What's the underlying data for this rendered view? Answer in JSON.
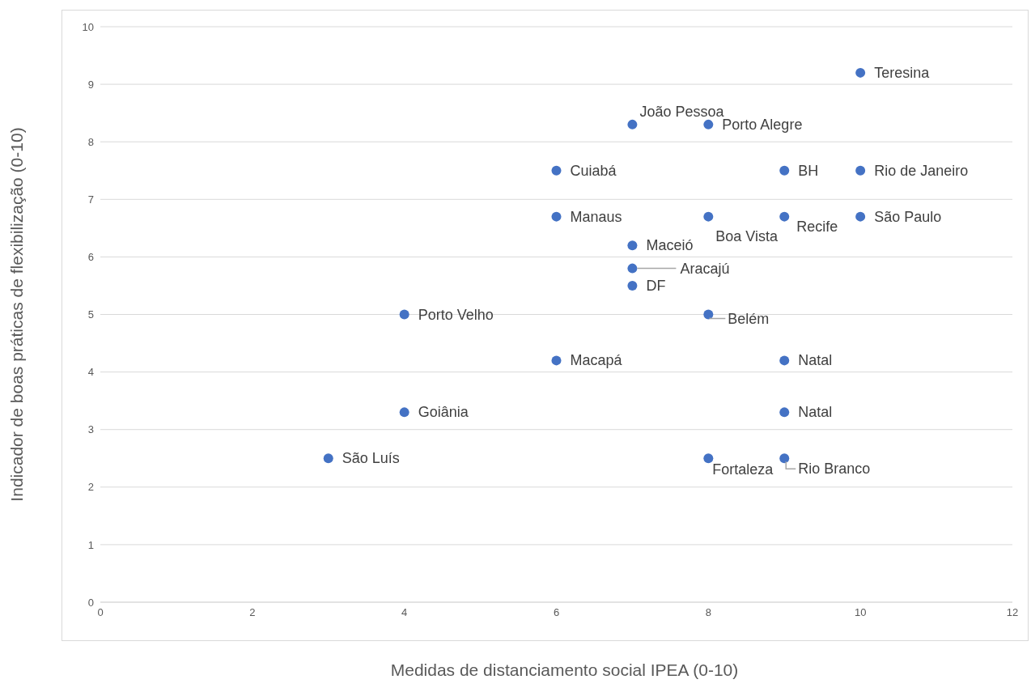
{
  "chart_data": {
    "type": "scatter",
    "xlabel": "Medidas de distanciamento social IPEA (0-10)",
    "ylabel": "Indicador de boas práticas de flexibilização (0-10)",
    "x": [
      10,
      7,
      8,
      6,
      9,
      10,
      6,
      8,
      9,
      10,
      7,
      7,
      7,
      4,
      8,
      6,
      9,
      4,
      9,
      3,
      8,
      9
    ],
    "series": [
      {
        "color": "#4472c4",
        "values": [
          9.2,
          8.3,
          8.3,
          7.5,
          7.5,
          7.5,
          6.7,
          6.7,
          6.7,
          6.7,
          6.2,
          5.8,
          5.5,
          5,
          5,
          4.2,
          4.2,
          3.3,
          3.3,
          2.5,
          2.5,
          2.5
        ]
      }
    ],
    "annotations": [
      {
        "text": "Teresina",
        "x": 10,
        "y": 9.2
      },
      {
        "text": "João Pessoa",
        "x": 7,
        "y": 8.3
      },
      {
        "text": "Porto Alegre",
        "x": 8,
        "y": 8.3
      },
      {
        "text": "Cuiabá",
        "x": 6,
        "y": 7.5
      },
      {
        "text": "BH",
        "x": 9,
        "y": 7.5
      },
      {
        "text": "Rio de Janeiro",
        "x": 10,
        "y": 7.5
      },
      {
        "text": "Manaus",
        "x": 6,
        "y": 6.7
      },
      {
        "text": "Boa Vista",
        "x": 8,
        "y": 6.7
      },
      {
        "text": "Recife",
        "x": 9,
        "y": 6.7
      },
      {
        "text": "São Paulo",
        "x": 10,
        "y": 6.7
      },
      {
        "text": "Maceió",
        "x": 7,
        "y": 6.2
      },
      {
        "text": "Aracajú",
        "x": 7,
        "y": 5.8
      },
      {
        "text": "DF",
        "x": 7,
        "y": 5.5
      },
      {
        "text": "Porto Velho",
        "x": 4,
        "y": 5
      },
      {
        "text": "Belém",
        "x": 8,
        "y": 5
      },
      {
        "text": "Macapá",
        "x": 6,
        "y": 4.2
      },
      {
        "text": "Natal",
        "x": 9,
        "y": 4.2
      },
      {
        "text": "Goiânia",
        "x": 4,
        "y": 3.3
      },
      {
        "text": "Natal",
        "x": 9,
        "y": 3.3
      },
      {
        "text": "São Luís",
        "x": 3,
        "y": 2.5
      },
      {
        "text": "Fortaleza",
        "x": 8,
        "y": 2.5
      },
      {
        "text": "Rio Branco",
        "x": 9,
        "y": 2.5
      }
    ],
    "xlim": [
      0,
      12
    ],
    "xticks": [
      0,
      2,
      4,
      6,
      8,
      10,
      12
    ],
    "ylim": [
      0,
      10
    ],
    "yticks": [
      0,
      1,
      2,
      3,
      4,
      5,
      6,
      7,
      8,
      9,
      10
    ],
    "grid": "y",
    "legend": false,
    "marker": "circle"
  }
}
